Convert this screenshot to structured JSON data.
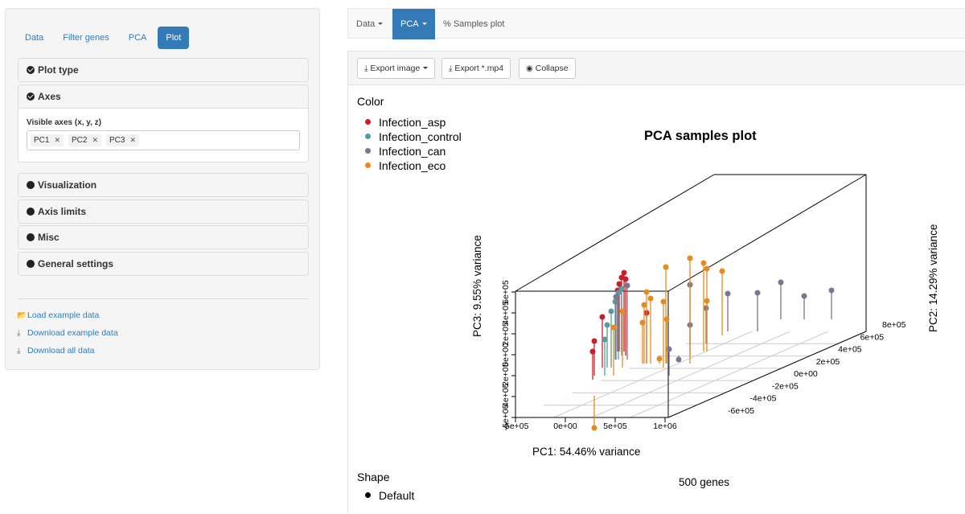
{
  "sidebar": {
    "tabs": [
      {
        "label": "Data",
        "active": false
      },
      {
        "label": "Filter genes",
        "active": false
      },
      {
        "label": "PCA",
        "active": false
      },
      {
        "label": "Plot",
        "active": true
      }
    ],
    "sections": {
      "plot_type": "Plot type",
      "axes": "Axes",
      "visualization": "Visualization",
      "axis_limits": "Axis limits",
      "misc": "Misc",
      "general_settings": "General settings"
    },
    "visible_axes": {
      "label": "Visible axes (x, y, z)",
      "chips": [
        "PC1",
        "PC2",
        "PC3"
      ]
    },
    "links": {
      "load_example": "Load example data",
      "download_example": "Download example data",
      "download_all": "Download all data"
    }
  },
  "topnav": {
    "data": "Data",
    "pca": "PCA",
    "samples_plot": "Samples plot"
  },
  "toolbar": {
    "export_image": "Export image",
    "export_mp4": "Export *.mp4",
    "collapse": "Collapse"
  },
  "plot": {
    "legend_color_title": "Color",
    "legend_items": [
      "Infection_asp",
      "Infection_control",
      "Infection_can",
      "Infection_eco"
    ],
    "legend_colors": [
      "#c8202a",
      "#5b9a9c",
      "#7e7391",
      "#e68a1f"
    ],
    "shape_title": "Shape",
    "shape_item": "Default",
    "title": "PCA samples plot",
    "footer": "500 genes",
    "pc1_label": "PC1: 54.46% variance",
    "pc2_label": "PC2: 14.29% variance",
    "pc3_label": "PC3: 9.55% variance",
    "pc1_ticks": [
      "-5e+05",
      "0e+00",
      "5e+05",
      "1e+06"
    ],
    "pc2_ticks": [
      "-6e+05",
      "-4e+05",
      "-2e+05",
      "0e+00",
      "2e+05",
      "4e+05",
      "6e+05",
      "8e+05"
    ],
    "pc3_ticks": [
      "-6e+05",
      "-4e+05",
      "-2e+05",
      "0e+00",
      "2e+05",
      "4e+05",
      "6e+05"
    ]
  }
}
